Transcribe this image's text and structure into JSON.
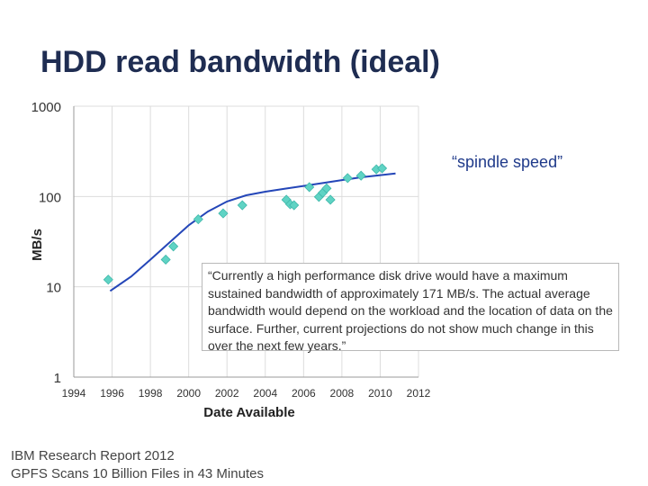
{
  "slide": {
    "title": "HDD read bandwidth (ideal)",
    "annotation": "“spindle speed”",
    "quote": "“Currently a high performance disk drive would have a maximum sustained bandwidth of approximately 171 MB/s. The actual average bandwidth would depend on the workload and the location of data on the surface. Further, current projections do not show much change in this over the next few years.”",
    "source_lines": [
      "IBM Research Report 2012",
      "GPFS Scans 10 Billion Files in 43 Minutes"
    ]
  },
  "colors": {
    "title": "#1f2d52",
    "marker": "#5fd3c4",
    "trend": "#2446b8",
    "grid": "#dcdcdc"
  },
  "chart_data": {
    "type": "scatter",
    "title": "",
    "xlabel": "Date Available",
    "ylabel": "MB/s",
    "yscale": "log",
    "xlim": [
      1994,
      2012
    ],
    "ylim": [
      1,
      1000
    ],
    "xticks": [
      1994,
      1996,
      1998,
      2000,
      2002,
      2004,
      2006,
      2008,
      2010,
      2012
    ],
    "yticks": [
      1,
      10,
      100,
      1000
    ],
    "xtick_labels": [
      "1994",
      "1996",
      "1998",
      "2000",
      "2002",
      "2004",
      "2006",
      "2008",
      "2010",
      "2012"
    ],
    "ytick_labels": [
      "1",
      "10",
      "100",
      "1000"
    ],
    "grid": true,
    "series": [
      {
        "kind": "points",
        "marker": "diamond",
        "x": [
          1995.8,
          1998.8,
          1999.2,
          2000.5,
          2001.8,
          2002.8,
          2005.1,
          2005.3,
          2005.5,
          2006.3,
          2006.8,
          2007.0,
          2007.2,
          2007.4,
          2008.3,
          2009.0,
          2009.8,
          2010.1
        ],
        "y": [
          12,
          20,
          28,
          56,
          65,
          80,
          92,
          82,
          80,
          127,
          99,
          110,
          123,
          92,
          160,
          170,
          200,
          205
        ]
      },
      {
        "kind": "trend",
        "x": [
          1995.9,
          1997.0,
          1998.0,
          1999.0,
          2000.0,
          2001.0,
          2002.0,
          2003.0,
          2004.0,
          2005.0,
          2006.0,
          2007.0,
          2008.0,
          2009.0,
          2010.8
        ],
        "y": [
          9,
          13,
          20,
          31,
          48,
          68,
          88,
          103,
          113,
          122,
          131,
          141,
          152,
          163,
          180
        ]
      }
    ]
  }
}
